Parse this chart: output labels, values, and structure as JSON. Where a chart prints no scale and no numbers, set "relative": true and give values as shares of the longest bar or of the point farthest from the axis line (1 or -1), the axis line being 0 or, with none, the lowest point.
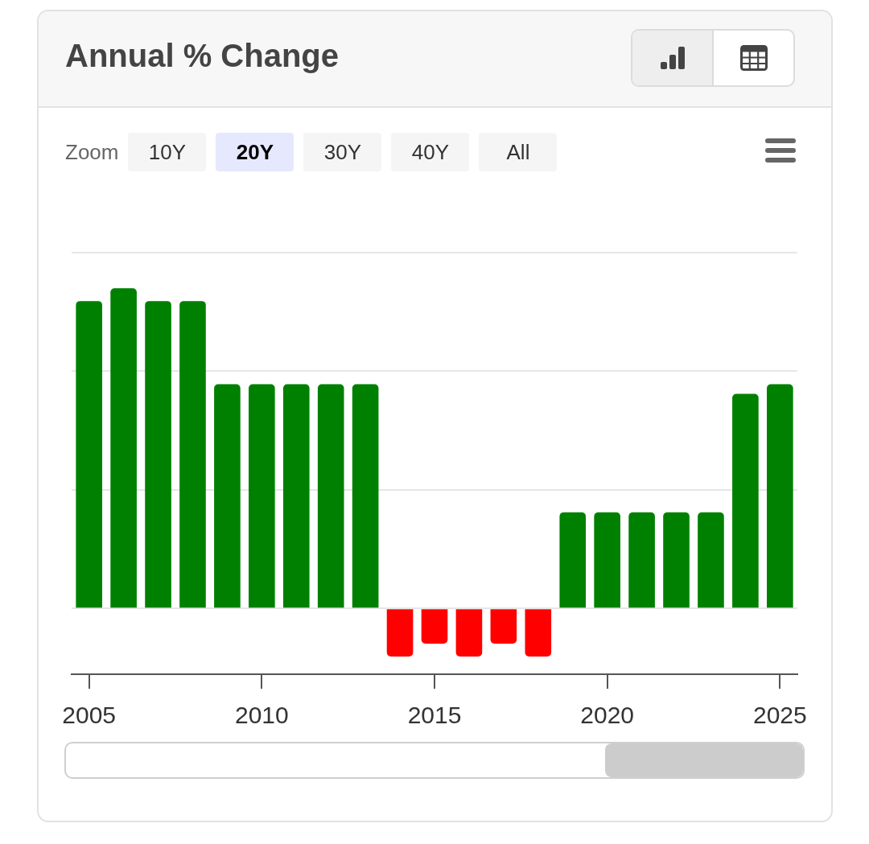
{
  "chart_data": {
    "type": "bar",
    "title": "Annual % Change",
    "categories": [
      "2005",
      null,
      null,
      null,
      null,
      "2010",
      null,
      null,
      null,
      null,
      "2015",
      null,
      null,
      null,
      null,
      "2020",
      null,
      null,
      null,
      null,
      "2025"
    ],
    "values": [
      0.96,
      1,
      0.96,
      0.96,
      0.7,
      0.7,
      0.7,
      0.7,
      0.7,
      -0.15,
      -0.11,
      -0.15,
      -0.11,
      -0.15,
      0.3,
      0.3,
      0.3,
      0.3,
      0.3,
      0.67,
      0.7
    ],
    "colors": [
      "#008000",
      "#008000",
      "#008000",
      "#008000",
      "#008000",
      "#008000",
      "#008000",
      "#008000",
      "#008000",
      "#ff0000",
      "#ff0000",
      "#ff0000",
      "#ff0000",
      "#ff0000",
      "#008000",
      "#008000",
      "#008000",
      "#008000",
      "#008000",
      "#008000",
      "#008000"
    ],
    "relative": true,
    "grid": "y",
    "annotations": [
      "Zoom",
      "10Y",
      "20Y",
      "30Y",
      "40Y",
      "All"
    ]
  }
}
